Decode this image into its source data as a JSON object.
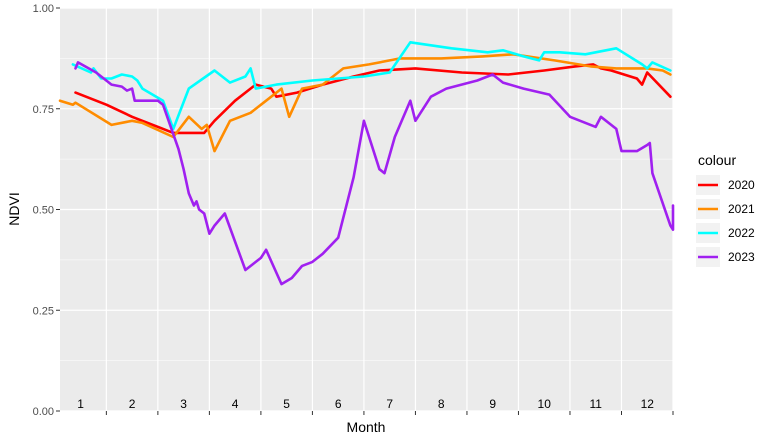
{
  "chart_data": {
    "type": "line",
    "xlabel": "Month",
    "ylabel": "NDVI",
    "x_unit": "month (1-12, fractional)",
    "ylim": [
      0,
      1
    ],
    "xlim": [
      0.6,
      12.5
    ],
    "y_ticks": [
      "0.00",
      "0.25",
      "0.50",
      "0.75",
      "1.00"
    ],
    "month_labels": [
      "1",
      "2",
      "3",
      "4",
      "5",
      "6",
      "7",
      "8",
      "9",
      "10",
      "11",
      "12"
    ],
    "grid": true,
    "legend_title": "colour",
    "legend_position": "right",
    "series": [
      {
        "name": "2020",
        "color": "#ff0000",
        "points": [
          [
            0.9,
            0.79
          ],
          [
            1.5,
            0.76
          ],
          [
            2.0,
            0.73
          ],
          [
            2.8,
            0.69
          ],
          [
            3.4,
            0.69
          ],
          [
            3.6,
            0.72
          ],
          [
            4.0,
            0.77
          ],
          [
            4.4,
            0.81
          ],
          [
            4.7,
            0.8
          ],
          [
            4.8,
            0.78
          ],
          [
            5.2,
            0.79
          ],
          [
            5.7,
            0.81
          ],
          [
            6.3,
            0.83
          ],
          [
            6.8,
            0.845
          ],
          [
            7.5,
            0.85
          ],
          [
            8.4,
            0.84
          ],
          [
            9.3,
            0.835
          ],
          [
            10.0,
            0.845
          ],
          [
            10.6,
            0.855
          ],
          [
            10.95,
            0.86
          ],
          [
            11.1,
            0.85
          ],
          [
            11.3,
            0.845
          ],
          [
            11.8,
            0.825
          ],
          [
            11.9,
            0.81
          ],
          [
            12.0,
            0.84
          ],
          [
            12.45,
            0.78
          ]
        ]
      },
      {
        "name": "2021",
        "color": "#ff8c00",
        "points": [
          [
            0.6,
            0.77
          ],
          [
            0.85,
            0.76
          ],
          [
            0.9,
            0.765
          ],
          [
            1.6,
            0.71
          ],
          [
            2.0,
            0.72
          ],
          [
            2.2,
            0.715
          ],
          [
            2.8,
            0.68
          ],
          [
            3.1,
            0.73
          ],
          [
            3.35,
            0.7
          ],
          [
            3.45,
            0.71
          ],
          [
            3.6,
            0.645
          ],
          [
            3.9,
            0.72
          ],
          [
            4.3,
            0.74
          ],
          [
            4.6,
            0.77
          ],
          [
            4.9,
            0.8
          ],
          [
            5.05,
            0.73
          ],
          [
            5.3,
            0.8
          ],
          [
            5.7,
            0.81
          ],
          [
            6.1,
            0.85
          ],
          [
            6.6,
            0.86
          ],
          [
            7.2,
            0.875
          ],
          [
            8.0,
            0.875
          ],
          [
            8.8,
            0.88
          ],
          [
            9.4,
            0.885
          ],
          [
            10.2,
            0.87
          ],
          [
            10.9,
            0.855
          ],
          [
            11.4,
            0.85
          ],
          [
            12.0,
            0.85
          ],
          [
            12.3,
            0.845
          ],
          [
            12.45,
            0.835
          ]
        ]
      },
      {
        "name": "2022",
        "color": "#00ffff",
        "points": [
          [
            0.85,
            0.86
          ],
          [
            1.2,
            0.84
          ],
          [
            1.25,
            0.85
          ],
          [
            1.4,
            0.825
          ],
          [
            1.6,
            0.825
          ],
          [
            1.8,
            0.835
          ],
          [
            2.0,
            0.83
          ],
          [
            2.1,
            0.82
          ],
          [
            2.2,
            0.8
          ],
          [
            2.6,
            0.77
          ],
          [
            2.8,
            0.7
          ],
          [
            3.1,
            0.8
          ],
          [
            3.6,
            0.845
          ],
          [
            3.9,
            0.815
          ],
          [
            4.2,
            0.83
          ],
          [
            4.3,
            0.85
          ],
          [
            4.4,
            0.8
          ],
          [
            4.8,
            0.81
          ],
          [
            5.5,
            0.82
          ],
          [
            6.0,
            0.825
          ],
          [
            6.5,
            0.83
          ],
          [
            7.0,
            0.84
          ],
          [
            7.4,
            0.915
          ],
          [
            8.2,
            0.9
          ],
          [
            8.9,
            0.89
          ],
          [
            9.2,
            0.895
          ],
          [
            9.6,
            0.88
          ],
          [
            9.9,
            0.87
          ],
          [
            10.0,
            0.89
          ],
          [
            10.3,
            0.89
          ],
          [
            10.8,
            0.885
          ],
          [
            11.4,
            0.9
          ],
          [
            11.9,
            0.86
          ],
          [
            12.0,
            0.85
          ],
          [
            12.1,
            0.865
          ],
          [
            12.45,
            0.845
          ]
        ]
      },
      {
        "name": "2023",
        "color": "#a020f0",
        "points": [
          [
            0.9,
            0.85
          ],
          [
            0.95,
            0.865
          ],
          [
            1.3,
            0.84
          ],
          [
            1.6,
            0.81
          ],
          [
            1.8,
            0.805
          ],
          [
            1.9,
            0.795
          ],
          [
            2.0,
            0.8
          ],
          [
            2.05,
            0.77
          ],
          [
            2.4,
            0.77
          ],
          [
            2.5,
            0.77
          ],
          [
            2.6,
            0.76
          ],
          [
            2.9,
            0.65
          ],
          [
            3.0,
            0.6
          ],
          [
            3.1,
            0.54
          ],
          [
            3.2,
            0.51
          ],
          [
            3.25,
            0.52
          ],
          [
            3.3,
            0.5
          ],
          [
            3.4,
            0.49
          ],
          [
            3.5,
            0.44
          ],
          [
            3.6,
            0.46
          ],
          [
            3.8,
            0.49
          ],
          [
            4.2,
            0.35
          ],
          [
            4.5,
            0.38
          ],
          [
            4.6,
            0.4
          ],
          [
            4.9,
            0.315
          ],
          [
            5.1,
            0.33
          ],
          [
            5.3,
            0.36
          ],
          [
            5.5,
            0.37
          ],
          [
            5.7,
            0.39
          ],
          [
            6.0,
            0.43
          ],
          [
            6.3,
            0.58
          ],
          [
            6.5,
            0.72
          ],
          [
            6.8,
            0.6
          ],
          [
            6.9,
            0.59
          ],
          [
            7.1,
            0.68
          ],
          [
            7.4,
            0.77
          ],
          [
            7.5,
            0.72
          ],
          [
            7.8,
            0.78
          ],
          [
            8.1,
            0.8
          ],
          [
            8.7,
            0.82
          ],
          [
            9.0,
            0.835
          ],
          [
            9.2,
            0.815
          ],
          [
            9.6,
            0.8
          ],
          [
            10.1,
            0.785
          ],
          [
            10.5,
            0.73
          ],
          [
            10.9,
            0.71
          ],
          [
            11.0,
            0.705
          ],
          [
            11.1,
            0.73
          ],
          [
            11.3,
            0.71
          ],
          [
            11.4,
            0.7
          ],
          [
            11.5,
            0.645
          ],
          [
            11.8,
            0.645
          ],
          [
            12.0,
            0.66
          ],
          [
            12.05,
            0.665
          ],
          [
            12.1,
            0.59
          ],
          [
            12.45,
            0.46
          ],
          [
            12.5,
            0.45
          ],
          [
            12.5,
            0.51
          ]
        ]
      }
    ]
  }
}
